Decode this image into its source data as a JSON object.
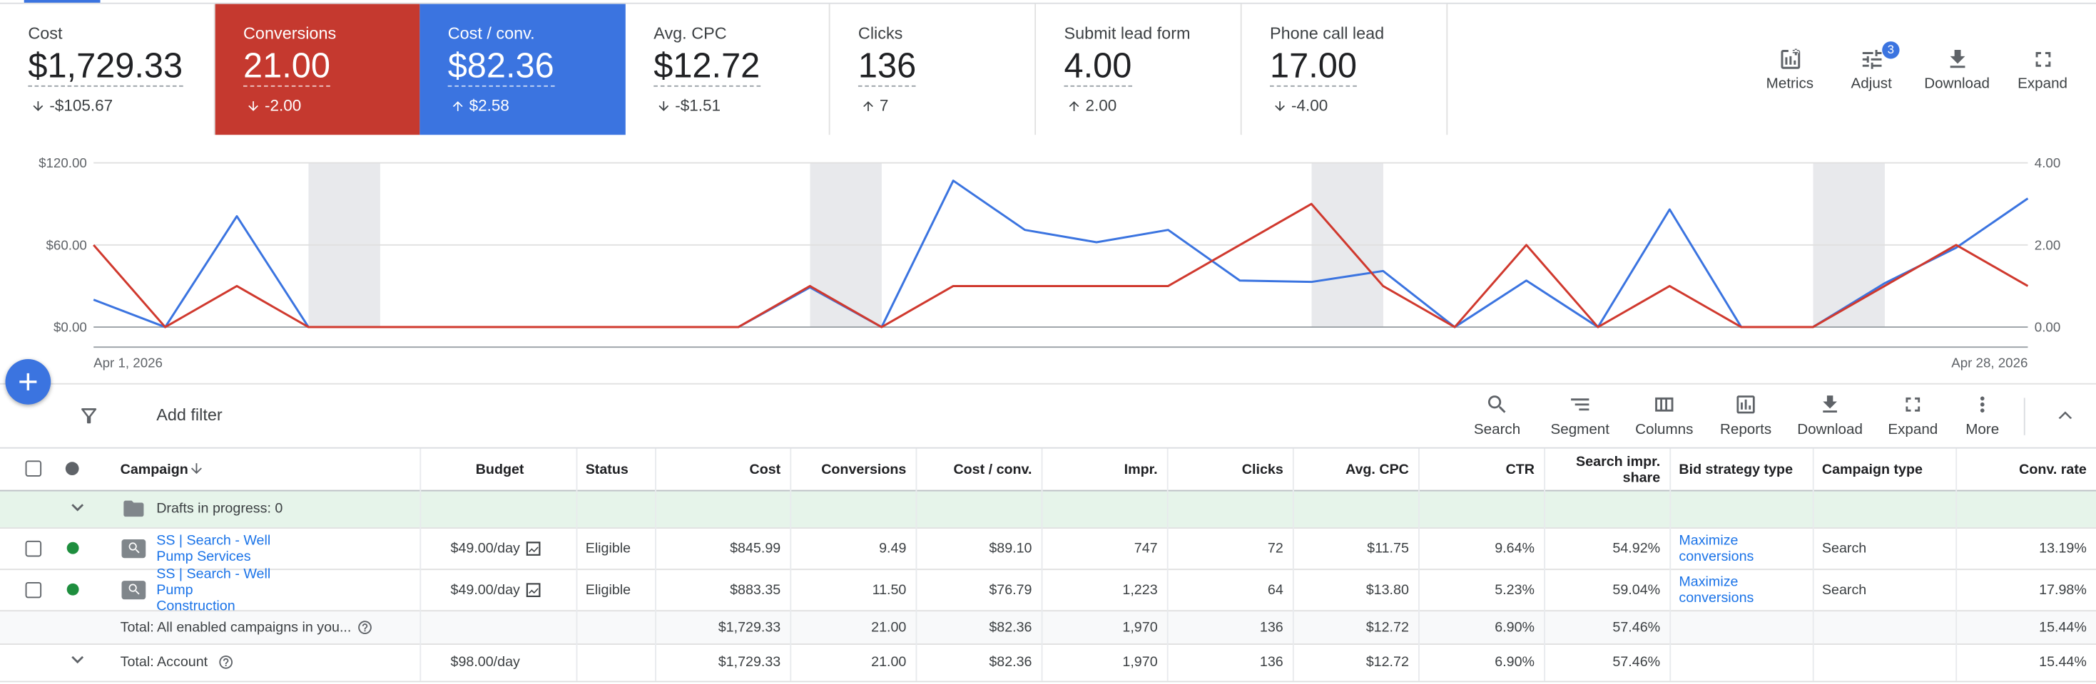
{
  "metrics": [
    {
      "label": "Cost",
      "value": "$1,729.33",
      "change": "-$105.67",
      "trend": "down"
    },
    {
      "label": "Conversions",
      "value": "21.00",
      "change": "-2.00",
      "trend": "down",
      "color": "#c5392f"
    },
    {
      "label": "Cost / conv.",
      "value": "$82.36",
      "change": "$2.58",
      "trend": "up",
      "color": "#3b74e0"
    },
    {
      "label": "Avg. CPC",
      "value": "$12.72",
      "change": "-$1.51",
      "trend": "down"
    },
    {
      "label": "Clicks",
      "value": "136",
      "change": "7",
      "trend": "up"
    },
    {
      "label": "Submit lead form",
      "value": "4.00",
      "change": "2.00",
      "trend": "up"
    },
    {
      "label": "Phone call lead",
      "value": "17.00",
      "change": "-4.00",
      "trend": "down"
    }
  ],
  "chart_toolbar": [
    "Metrics",
    "Adjust",
    "Download",
    "Expand"
  ],
  "adjust_badge": "3",
  "chart": {
    "type": "line",
    "categories": [
      "Apr 1, 2026",
      null,
      null,
      null,
      null,
      null,
      null,
      null,
      null,
      null,
      null,
      null,
      null,
      null,
      null,
      null,
      null,
      null,
      null,
      null,
      null,
      null,
      null,
      null,
      null,
      null,
      null,
      "Apr 28, 2026"
    ],
    "series": [
      {
        "color": "#3b74e0",
        "values": [
          20,
          0,
          81,
          0,
          0,
          0,
          0,
          0,
          0,
          0,
          29,
          0,
          107,
          71,
          62,
          71,
          34,
          33,
          41,
          0,
          34,
          0,
          86,
          0,
          0,
          32,
          58,
          94
        ]
      },
      {
        "color": "#d0392e",
        "axis": "y2",
        "values": [
          2,
          0,
          1,
          0,
          0,
          0,
          0,
          0,
          0,
          0,
          1,
          0,
          1,
          1,
          1,
          1,
          2,
          3,
          1,
          0,
          2,
          0,
          1,
          0,
          0,
          1,
          2,
          1
        ]
      }
    ],
    "ylim": [
      0,
      120
    ],
    "yticks": [
      {
        "value": 0,
        "label": "$0.00"
      },
      {
        "value": 60,
        "label": "$60.00"
      },
      {
        "value": 120,
        "label": "$120.00"
      }
    ],
    "y2lim": [
      0,
      4
    ],
    "y2ticks": [
      {
        "value": 0,
        "label": "0.00"
      },
      {
        "value": 2,
        "label": "2.00"
      },
      {
        "value": 4,
        "label": "4.00"
      }
    ],
    "grid": true
  },
  "filter": "Add filter",
  "table_toolbar": [
    "Search",
    "Segment",
    "Columns",
    "Reports",
    "Download",
    "Expand",
    "More"
  ],
  "table": {
    "columns": [
      "Campaign",
      "Budget",
      "Status",
      "Cost",
      "Conversions",
      "Cost / conv.",
      "Impr.",
      "Clicks",
      "Avg. CPC",
      "CTR",
      "Search impr. share",
      "Bid strategy type",
      "Campaign type",
      "Conv. rate"
    ],
    "drafts": "Drafts in progress: 0",
    "rows": [
      [
        "SS | Search - Well Pump Services",
        "$49.00/day",
        "Eligible",
        "$845.99",
        "9.49",
        "$89.10",
        "747",
        "72",
        "$11.75",
        "9.64%",
        "54.92%",
        "Maximize conversions",
        "Search",
        "13.19%"
      ],
      [
        "SS | Search - Well Pump Construction",
        "$49.00/day",
        "Eligible",
        "$883.35",
        "11.50",
        "$76.79",
        "1,223",
        "64",
        "$13.80",
        "5.23%",
        "59.04%",
        "Maximize conversions",
        "Search",
        "17.98%"
      ]
    ],
    "totals": [
      [
        "Total: All enabled campaigns in you...",
        null,
        null,
        "$1,729.33",
        "21.00",
        "$82.36",
        "1,970",
        "136",
        "$12.72",
        "6.90%",
        "57.46%",
        null,
        null,
        "15.44%"
      ],
      [
        "Total: Account",
        "$98.00/day",
        null,
        "$1,729.33",
        "21.00",
        "$82.36",
        "1,970",
        "136",
        "$12.72",
        "6.90%",
        "57.46%",
        null,
        null,
        "15.44%"
      ]
    ]
  }
}
